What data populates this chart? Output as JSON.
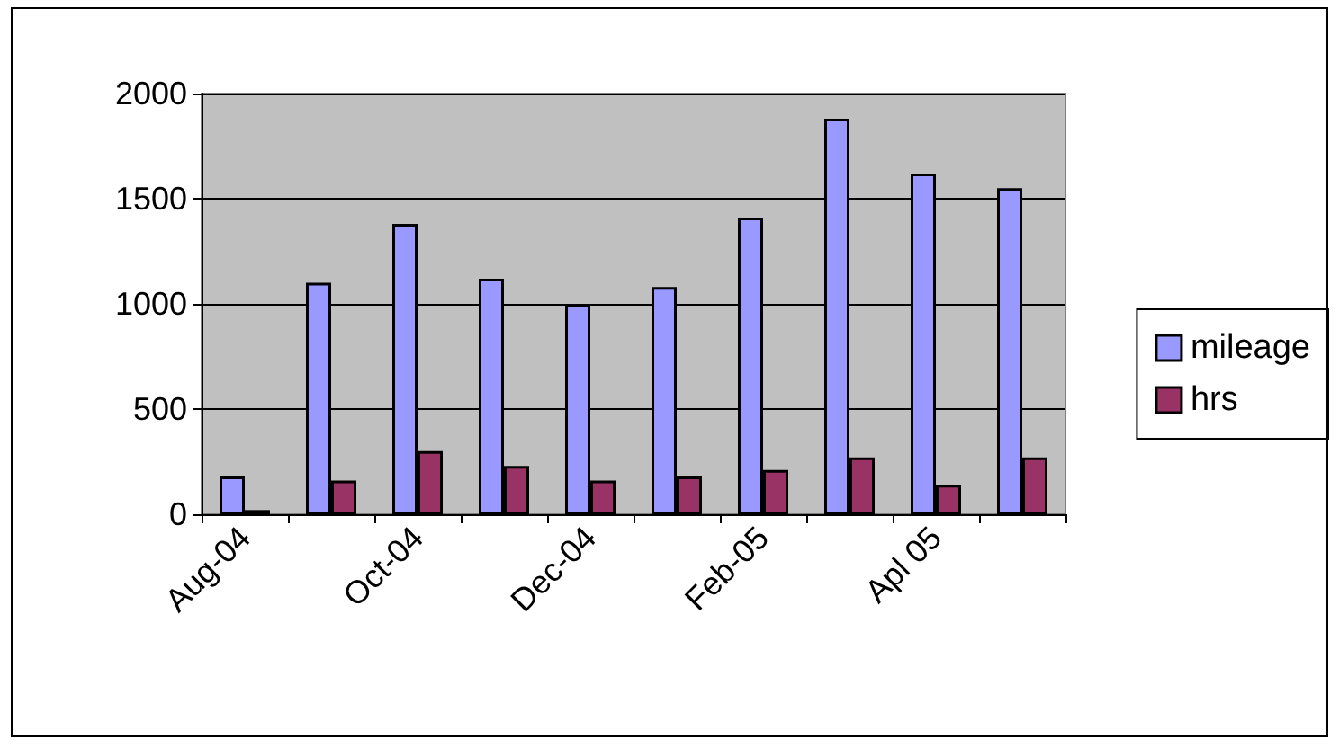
{
  "chart_data": {
    "type": "bar",
    "categories": [
      "Aug-04",
      null,
      "Oct-04",
      null,
      "Dec-04",
      null,
      "Feb-05",
      null,
      "Apl 05",
      null
    ],
    "series": [
      {
        "name": "mileage",
        "color": "#9999ff",
        "values": [
          180,
          1100,
          1380,
          1120,
          1000,
          1080,
          1410,
          1880,
          1620,
          1550
        ]
      },
      {
        "name": "hrs",
        "color": "#993366",
        "values": [
          20,
          160,
          300,
          230,
          160,
          180,
          210,
          270,
          140,
          270
        ]
      }
    ],
    "ylim": [
      0,
      2000
    ],
    "yticks": [
      0,
      500,
      1000,
      1500,
      2000
    ],
    "grid": "y",
    "legend": "right"
  }
}
